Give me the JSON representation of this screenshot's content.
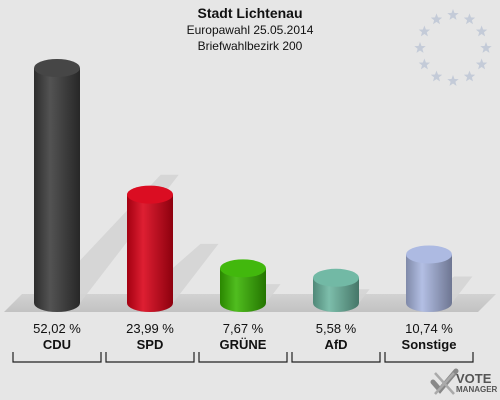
{
  "title": "Stadt Lichtenau",
  "subtitle1": "Europawahl 25.05.2014",
  "subtitle2": "Briefwahlbezirk 200",
  "logo": {
    "line1": "VOTE",
    "line2": "MANAGER"
  },
  "colors": {
    "background": "#e6e6e6",
    "floor": "#c8c8c8",
    "stars": "#c4cbd8"
  },
  "chart_data": {
    "type": "bar",
    "categories": [
      "CDU",
      "SPD",
      "GRÜNE",
      "AfD",
      "Sonstige"
    ],
    "values": [
      52.02,
      23.99,
      7.67,
      5.58,
      10.74
    ],
    "labels": [
      "52,02 %",
      "23,99 %",
      "7,67 %",
      "5,58 %",
      "10,74 %"
    ],
    "colors": [
      "#3c3c3c",
      "#d90016",
      "#38b400",
      "#6bb5a0",
      "#a9b6e0"
    ],
    "ylim": [
      0,
      52.02
    ]
  }
}
